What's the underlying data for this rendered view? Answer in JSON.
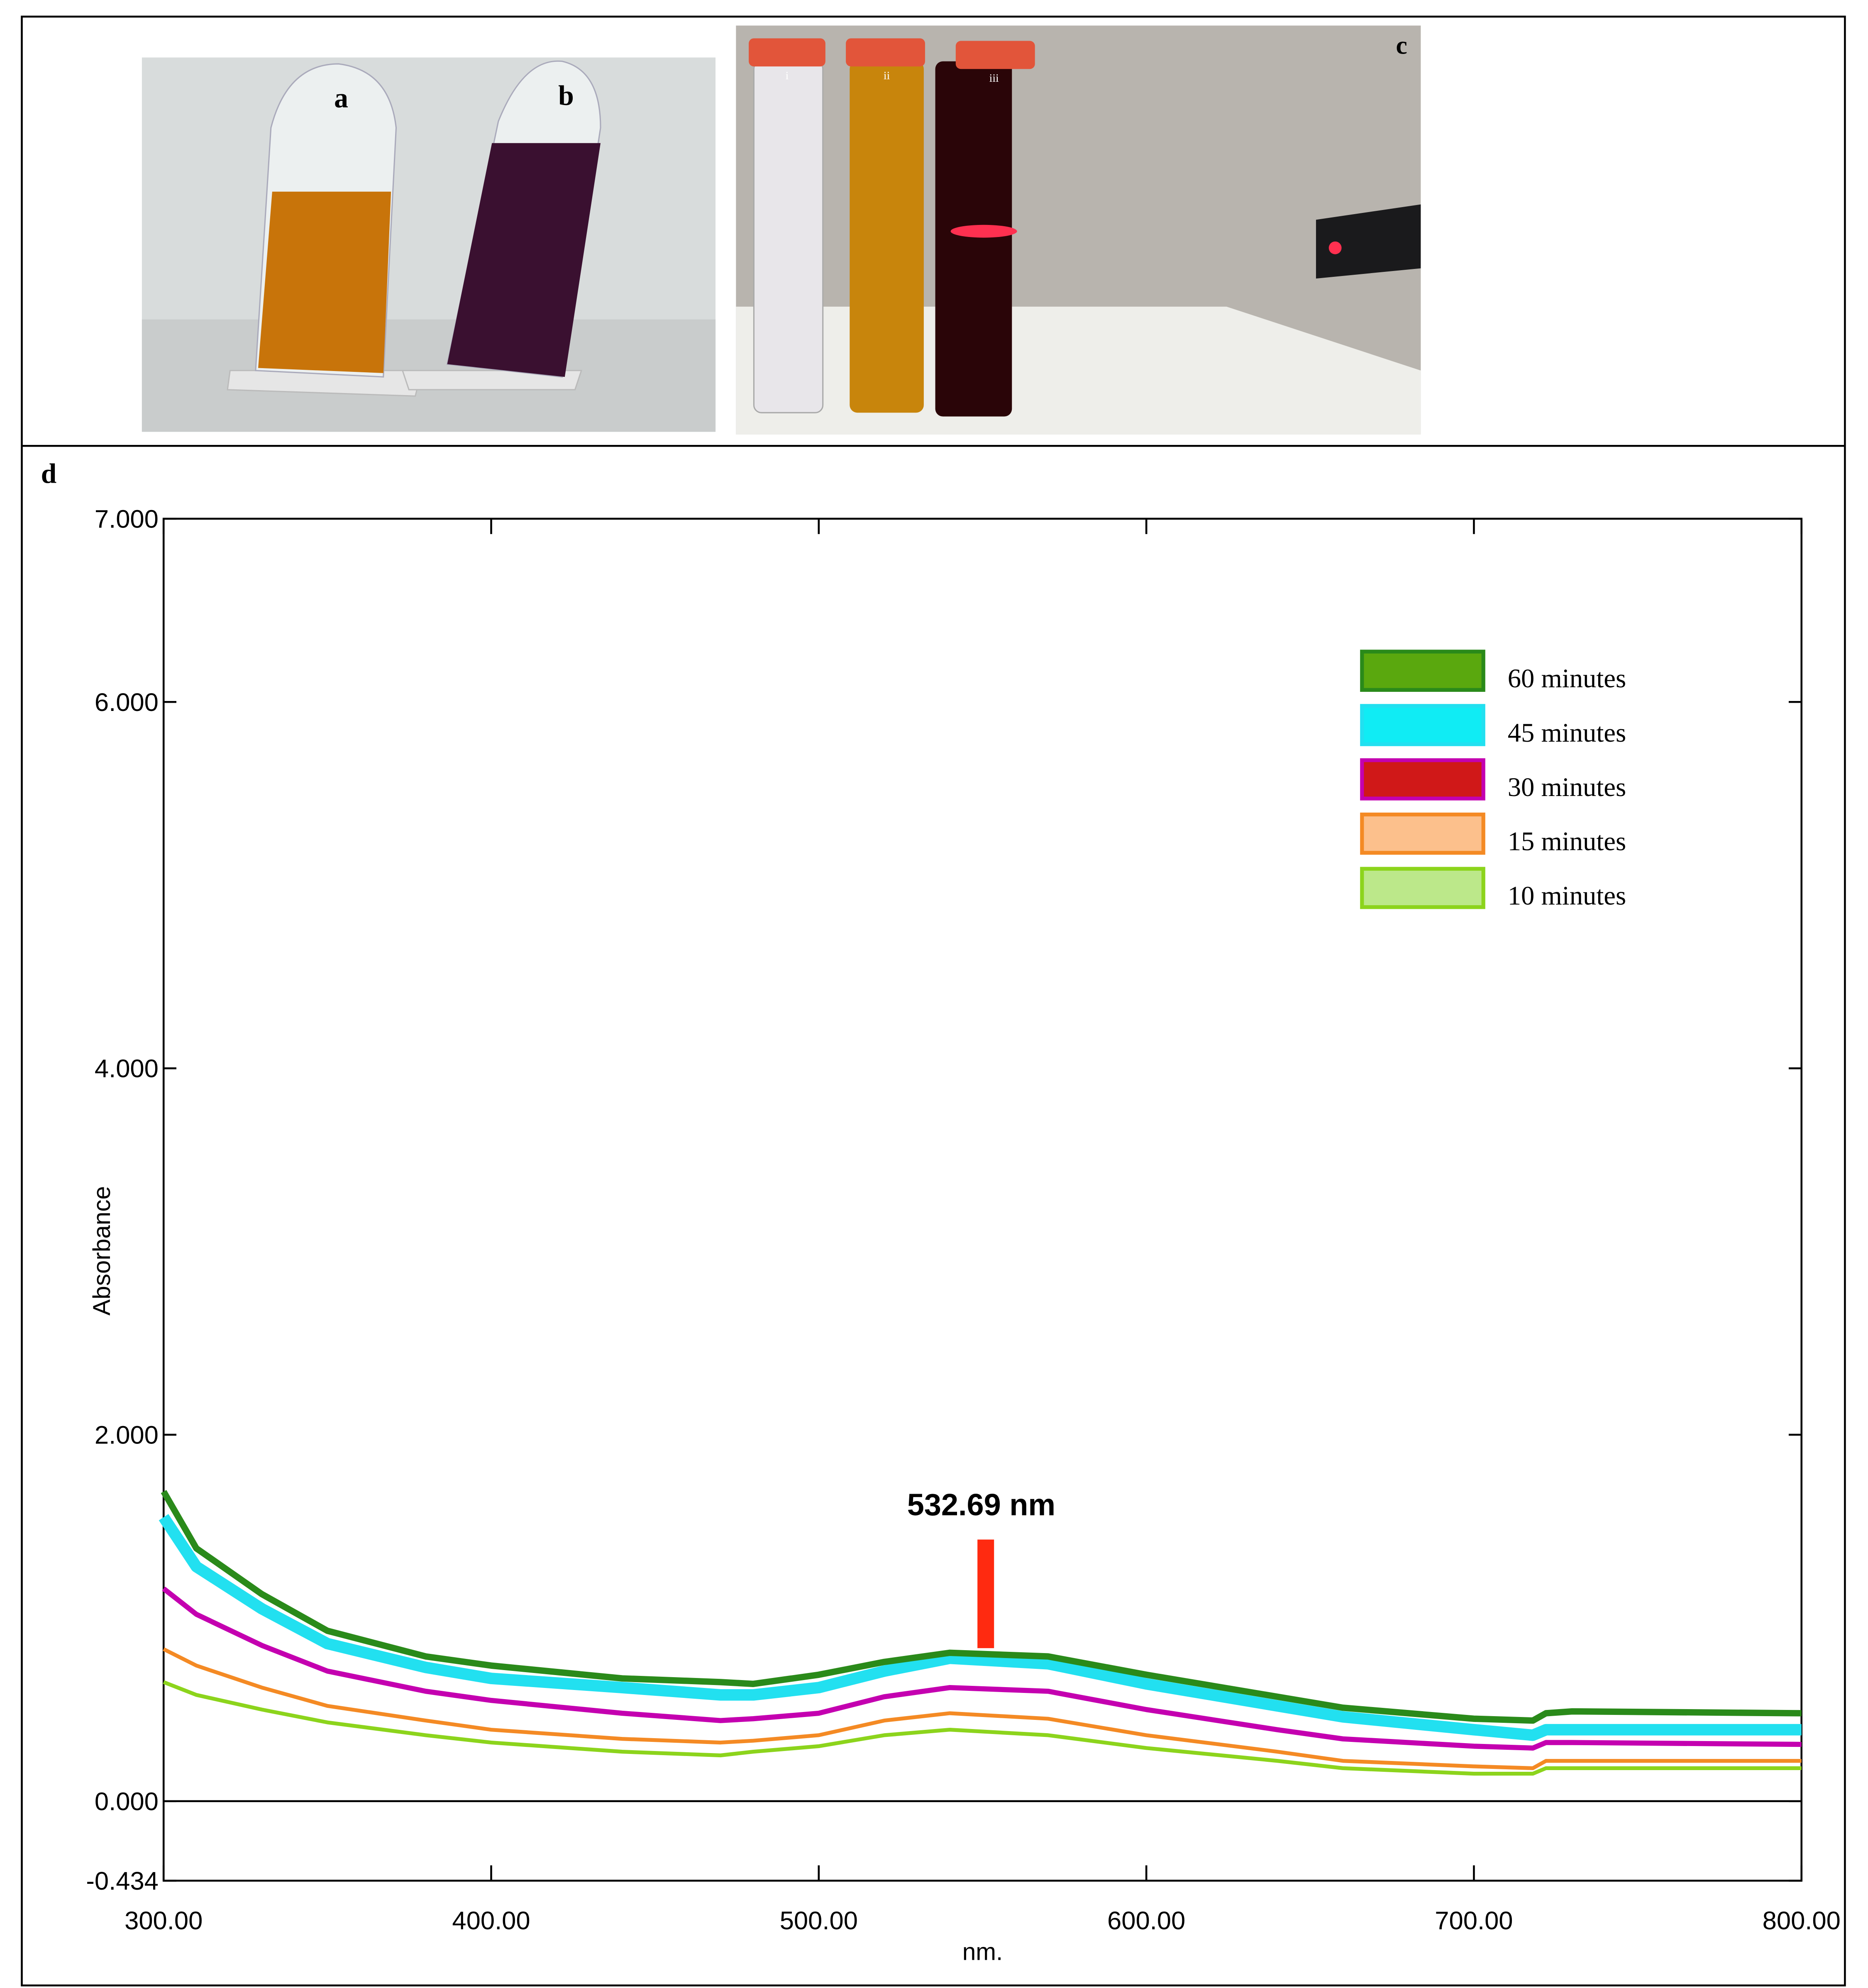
{
  "panels": [
    "a",
    "b",
    "c",
    "d"
  ],
  "tubes": [
    "i",
    "ii",
    "iii"
  ],
  "chart_data": {
    "type": "line",
    "x_label": "nm.",
    "y_label": "Absorbance",
    "annotation": "532.69 nm",
    "xlim": [
      300,
      800
    ],
    "ylim": [
      -0.434,
      7.0
    ],
    "xticks": [
      {
        "value": 300,
        "label": "300.00"
      },
      {
        "value": 400,
        "label": "400.00"
      },
      {
        "value": 500,
        "label": "500.00"
      },
      {
        "value": 600,
        "label": "600.00"
      },
      {
        "value": 700,
        "label": "700.00"
      },
      {
        "value": 800,
        "label": "800.00"
      }
    ],
    "yticks": [
      {
        "value": -0.434,
        "label": "-0.434"
      },
      {
        "value": 0,
        "label": "0.000"
      },
      {
        "value": 2,
        "label": "2.000"
      },
      {
        "value": 4,
        "label": "4.000"
      },
      {
        "value": 6,
        "label": "6.000"
      },
      {
        "value": 7,
        "label": "7.000"
      }
    ],
    "zero_line": true,
    "legend": "upper right",
    "x": [
      300,
      310,
      330,
      350,
      380,
      400,
      440,
      470,
      480,
      500,
      520,
      540,
      570,
      600,
      640,
      660,
      700,
      718,
      722,
      730,
      800
    ],
    "series": [
      {
        "name": "60 minutes",
        "color": "#2a8a1a",
        "swatch_color": "#5aa80e",
        "values": [
          1.69,
          1.38,
          1.13,
          0.93,
          0.79,
          0.74,
          0.67,
          0.65,
          0.64,
          0.69,
          0.76,
          0.81,
          0.79,
          0.69,
          0.57,
          0.51,
          0.45,
          0.44,
          0.48,
          0.49,
          0.48
        ]
      },
      {
        "name": "45 minutes",
        "color": "#22e0f0",
        "swatch_color": "#10ecf4",
        "values": [
          1.55,
          1.28,
          1.05,
          0.86,
          0.73,
          0.67,
          0.62,
          0.58,
          0.58,
          0.62,
          0.71,
          0.78,
          0.75,
          0.64,
          0.52,
          0.46,
          0.39,
          0.36,
          0.39,
          0.39,
          0.39
        ]
      },
      {
        "name": "30 minutes",
        "color": "#c400b0",
        "swatch_color": "#d01818",
        "values": [
          1.16,
          1.02,
          0.85,
          0.71,
          0.6,
          0.55,
          0.48,
          0.44,
          0.45,
          0.48,
          0.57,
          0.62,
          0.6,
          0.5,
          0.39,
          0.34,
          0.3,
          0.29,
          0.32,
          0.32,
          0.31
        ]
      },
      {
        "name": "15 minutes",
        "color": "#f48a24",
        "swatch_color": "#fcc08c",
        "values": [
          0.83,
          0.74,
          0.62,
          0.52,
          0.44,
          0.39,
          0.34,
          0.32,
          0.33,
          0.36,
          0.44,
          0.48,
          0.45,
          0.36,
          0.27,
          0.22,
          0.19,
          0.18,
          0.22,
          0.22,
          0.22
        ]
      },
      {
        "name": "10 minutes",
        "color": "#8cd41c",
        "swatch_color": "#bce88a",
        "values": [
          0.65,
          0.58,
          0.5,
          0.43,
          0.36,
          0.32,
          0.27,
          0.25,
          0.27,
          0.3,
          0.36,
          0.39,
          0.36,
          0.29,
          0.22,
          0.18,
          0.15,
          0.15,
          0.18,
          0.18,
          0.18
        ]
      }
    ]
  }
}
